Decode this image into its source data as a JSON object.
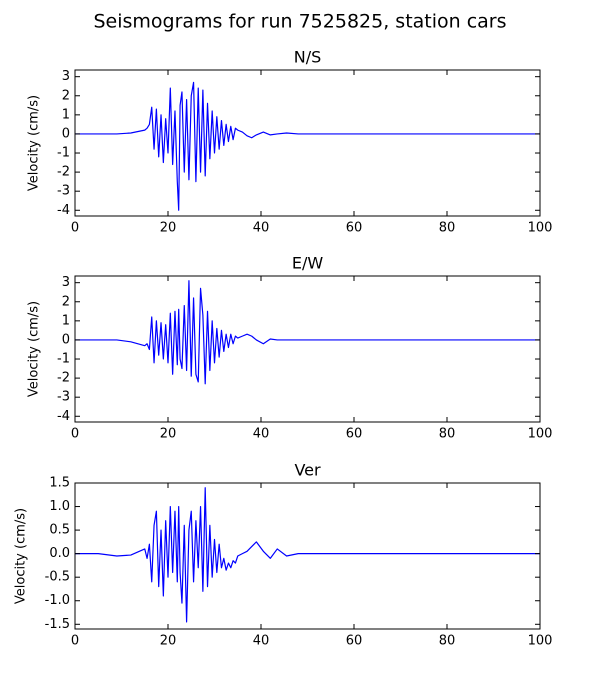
{
  "title": "Seismograms for run 7525825, station cars",
  "chart_data": [
    {
      "type": "line",
      "title": "N/S",
      "ylabel": "Velocity (cm/s)",
      "color": "#0000ff",
      "grid": false,
      "x": [
        0,
        5,
        9,
        12,
        15,
        15.5,
        16,
        16.5,
        17,
        17.5,
        18,
        18.5,
        19,
        19.5,
        20,
        20.5,
        21,
        21.5,
        22,
        22.3,
        22.6,
        23,
        23.5,
        24,
        24.5,
        25,
        25.5,
        26,
        26.5,
        27,
        27.5,
        28,
        28.5,
        29,
        29.5,
        30,
        30.5,
        31,
        31.5,
        32,
        32.5,
        33,
        33.5,
        34,
        34.5,
        35,
        36,
        37,
        38,
        39,
        40.5,
        42,
        43.5,
        45.5,
        48,
        50,
        55,
        60,
        70,
        80,
        90,
        100
      ],
      "values": [
        0,
        0,
        0,
        0.05,
        0.2,
        0.3,
        0.5,
        1.4,
        -0.8,
        1.3,
        -1.2,
        1.0,
        -1.5,
        0.8,
        -1.0,
        2.4,
        -1.6,
        1.2,
        -2.5,
        -4.0,
        1.5,
        2.2,
        -2.0,
        1.8,
        -2.4,
        2.0,
        2.7,
        -2.5,
        2.4,
        -2.0,
        2.3,
        -2.2,
        1.6,
        -1.3,
        1.2,
        -1.0,
        0.9,
        -0.8,
        0.7,
        -0.6,
        0.5,
        -0.4,
        0.4,
        -0.3,
        0.3,
        0.2,
        0.1,
        -0.1,
        -0.2,
        -0.05,
        0.1,
        -0.05,
        0,
        0.05,
        0,
        0,
        0,
        0,
        0,
        0,
        0,
        0
      ],
      "xlim": [
        0,
        100
      ],
      "xticks": [
        0,
        20,
        40,
        60,
        80,
        100
      ],
      "ylim": [
        -4.3,
        3.35
      ],
      "yticks": [
        3,
        2,
        1,
        0,
        -1,
        -2,
        -3,
        -4
      ]
    },
    {
      "type": "line",
      "title": "E/W",
      "ylabel": "Velocity (cm/s)",
      "color": "#0000ff",
      "grid": false,
      "x": [
        0,
        5,
        9,
        12,
        15,
        15.5,
        16,
        16.5,
        17,
        17.5,
        18,
        18.5,
        19,
        19.5,
        20,
        20.5,
        21,
        21.5,
        22,
        22.3,
        22.6,
        23,
        23.5,
        24,
        24.5,
        25,
        25.5,
        26,
        26.5,
        27,
        27.5,
        28,
        28.5,
        29,
        29.5,
        30,
        30.5,
        31,
        31.5,
        32,
        32.5,
        33,
        33.5,
        34,
        34.5,
        35,
        36,
        37,
        38,
        39,
        40.5,
        42,
        43.5,
        45.5,
        48,
        50,
        55,
        60,
        70,
        80,
        90,
        100
      ],
      "values": [
        0,
        0,
        0,
        -0.1,
        -0.3,
        -0.2,
        -0.5,
        1.2,
        -1.2,
        1.0,
        -0.8,
        0.9,
        -1.0,
        0.8,
        -1.2,
        1.4,
        -1.8,
        1.5,
        -1.3,
        1.6,
        -1.0,
        -1.5,
        1.8,
        -1.6,
        3.1,
        -1.9,
        2.2,
        -1.8,
        -2.2,
        2.7,
        1.3,
        -2.3,
        1.5,
        -1.6,
        1.0,
        -1.2,
        0.6,
        -0.9,
        0.5,
        -0.6,
        0.3,
        -0.4,
        0.3,
        -0.2,
        0.2,
        0.1,
        0.2,
        0.3,
        0.2,
        0,
        -0.2,
        0.05,
        0,
        0,
        0,
        0,
        0,
        0,
        0,
        0,
        0,
        0
      ],
      "xlim": [
        0,
        100
      ],
      "xticks": [
        0,
        20,
        40,
        60,
        80,
        100
      ],
      "ylim": [
        -4.3,
        3.35
      ],
      "yticks": [
        3,
        2,
        1,
        0,
        -1,
        -2,
        -3,
        -4
      ]
    },
    {
      "type": "line",
      "title": "Ver",
      "ylabel": "Velocity (cm/s)",
      "color": "#0000ff",
      "grid": false,
      "x": [
        0,
        5,
        9,
        12,
        15,
        15.5,
        16,
        16.5,
        17,
        17.5,
        18,
        18.5,
        19,
        19.5,
        20,
        20.5,
        21,
        21.5,
        22,
        22.3,
        22.6,
        23,
        23.5,
        24,
        24.5,
        25,
        25.5,
        26,
        26.5,
        27,
        27.5,
        28,
        28.5,
        29,
        29.5,
        30,
        30.5,
        31,
        31.5,
        32,
        32.5,
        33,
        33.5,
        34,
        34.5,
        35,
        36,
        37,
        38,
        39,
        40.5,
        42,
        43.5,
        45.5,
        48,
        50,
        55,
        60,
        70,
        80,
        90,
        100
      ],
      "values": [
        0,
        0,
        -0.05,
        -0.03,
        0.1,
        -0.1,
        0.2,
        -0.6,
        0.6,
        0.9,
        -0.7,
        0.5,
        -0.9,
        0.7,
        -0.5,
        1.0,
        -0.4,
        0.9,
        -0.6,
        1.0,
        -0.4,
        -1.05,
        0.6,
        -1.45,
        0.5,
        0.9,
        -0.6,
        0.7,
        -0.3,
        1.0,
        -0.8,
        1.4,
        -0.7,
        0.6,
        -0.5,
        0.3,
        -0.4,
        0.2,
        -0.3,
        -0.1,
        -0.35,
        -0.2,
        -0.3,
        -0.15,
        -0.2,
        -0.05,
        0,
        0.05,
        0.15,
        0.25,
        0.05,
        -0.1,
        0.1,
        -0.05,
        0,
        0,
        0,
        0,
        0,
        0,
        0,
        0
      ],
      "xlim": [
        0,
        100
      ],
      "xticks": [
        0,
        20,
        40,
        60,
        80,
        100
      ],
      "ylim": [
        -1.6,
        1.5
      ],
      "yticks": [
        1.5,
        {
          "value": 1,
          "label": "1.0"
        },
        0.5,
        {
          "value": 0,
          "label": "0.0"
        },
        -0.5,
        {
          "value": -1,
          "label": "-1.0"
        },
        -1.5
      ]
    }
  ]
}
